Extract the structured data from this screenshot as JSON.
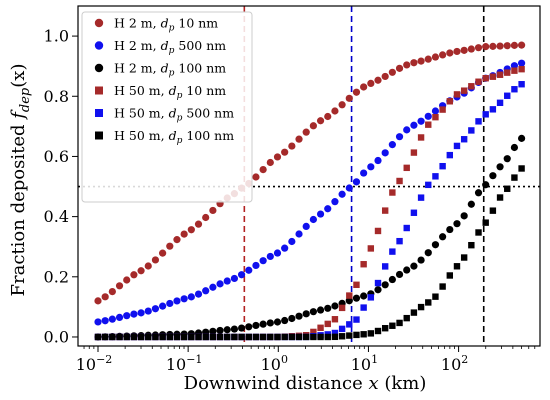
{
  "chart_data": {
    "type": "scatter",
    "xlabel": {
      "prefix": "Downwind distance ",
      "var": "x",
      "suffix": " (km)"
    },
    "ylabel": {
      "prefix": "Fraction deposited ",
      "var": "f",
      "sub": "dep",
      "suffix": "(x)"
    },
    "xscale": "log",
    "xlim": [
      0.006,
      800
    ],
    "ylim": [
      -0.03,
      1.1
    ],
    "xticks": [
      {
        "value": 0.01,
        "base": "10",
        "exp": "−2"
      },
      {
        "value": 0.1,
        "base": "10",
        "exp": "−1"
      },
      {
        "value": 1,
        "base": "10",
        "exp": "0"
      },
      {
        "value": 10,
        "base": "10",
        "exp": "1"
      },
      {
        "value": 100,
        "base": "10",
        "exp": "2"
      }
    ],
    "yticks": [
      {
        "value": 0.0,
        "label": "0.0"
      },
      {
        "value": 0.2,
        "label": "0.2"
      },
      {
        "value": 0.4,
        "label": "0.4"
      },
      {
        "value": 0.6,
        "label": "0.6"
      },
      {
        "value": 0.8,
        "label": "0.8"
      },
      {
        "value": 1.0,
        "label": "1.0"
      }
    ],
    "grid": false,
    "legend_position": "top-left",
    "reference_lines": [
      {
        "orientation": "horizontal",
        "value": 0.5,
        "color": "#000000",
        "style": "dotted"
      },
      {
        "orientation": "vertical",
        "value": 0.42,
        "color": "#b22222",
        "style": "dashed"
      },
      {
        "orientation": "vertical",
        "value": 6.5,
        "color": "#0000cc",
        "style": "dashed"
      },
      {
        "orientation": "vertical",
        "value": 190,
        "color": "#000000",
        "style": "dashed"
      }
    ],
    "series": [
      {
        "h": "H 2 m, ",
        "dp": "d",
        "dp_sub": "p",
        "size": " 10 nm",
        "marker": "circle",
        "color": "#a52a2a",
        "points": [
          [
            0.01,
            0.12
          ],
          [
            0.03,
            0.22
          ],
          [
            0.1,
            0.35
          ],
          [
            0.3,
            0.47
          ],
          [
            0.42,
            0.5
          ],
          [
            1,
            0.6
          ],
          [
            3,
            0.72
          ],
          [
            10,
            0.84
          ],
          [
            30,
            0.91
          ],
          [
            100,
            0.95
          ],
          [
            200,
            0.965
          ],
          [
            500,
            0.97
          ]
        ]
      },
      {
        "h": "H 2 m, ",
        "dp": "d",
        "dp_sub": "p",
        "size": " 500 nm",
        "marker": "circle",
        "color": "#1010ee",
        "points": [
          [
            0.01,
            0.05
          ],
          [
            0.03,
            0.08
          ],
          [
            0.1,
            0.13
          ],
          [
            0.3,
            0.19
          ],
          [
            1,
            0.28
          ],
          [
            3,
            0.41
          ],
          [
            6.5,
            0.5
          ],
          [
            10,
            0.56
          ],
          [
            30,
            0.7
          ],
          [
            100,
            0.8
          ],
          [
            200,
            0.86
          ],
          [
            500,
            0.91
          ]
        ]
      },
      {
        "h": "H 2 m, ",
        "dp": "d",
        "dp_sub": "p",
        "size": " 100 nm",
        "marker": "circle",
        "color": "#000000",
        "points": [
          [
            0.01,
            0.0
          ],
          [
            0.1,
            0.01
          ],
          [
            0.3,
            0.025
          ],
          [
            1,
            0.05
          ],
          [
            3,
            0.09
          ],
          [
            10,
            0.14
          ],
          [
            30,
            0.23
          ],
          [
            100,
            0.38
          ],
          [
            190,
            0.5
          ],
          [
            300,
            0.57
          ],
          [
            500,
            0.66
          ]
        ]
      },
      {
        "h": "H 50 m, ",
        "dp": "d",
        "dp_sub": "p",
        "size": " 10 nm",
        "marker": "square",
        "color": "#a52a2a",
        "points": [
          [
            0.01,
            0.0
          ],
          [
            1,
            0.0
          ],
          [
            2,
            0.005
          ],
          [
            4,
            0.05
          ],
          [
            7,
            0.16
          ],
          [
            10,
            0.28
          ],
          [
            20,
            0.5
          ],
          [
            50,
            0.72
          ],
          [
            100,
            0.81
          ],
          [
            200,
            0.86
          ],
          [
            500,
            0.89
          ]
        ]
      },
      {
        "h": "H 50 m, ",
        "dp": "d",
        "dp_sub": "p",
        "size": " 500 nm",
        "marker": "square",
        "color": "#1010ee",
        "points": [
          [
            0.01,
            0.0
          ],
          [
            2,
            0.0
          ],
          [
            4,
            0.01
          ],
          [
            7,
            0.05
          ],
          [
            10,
            0.12
          ],
          [
            20,
            0.3
          ],
          [
            50,
            0.52
          ],
          [
            100,
            0.64
          ],
          [
            200,
            0.74
          ],
          [
            500,
            0.84
          ]
        ]
      },
      {
        "h": "H 50 m, ",
        "dp": "d",
        "dp_sub": "p",
        "size": " 100 nm",
        "marker": "square",
        "color": "#000000",
        "points": [
          [
            0.01,
            0.0
          ],
          [
            4,
            0.0
          ],
          [
            10,
            0.01
          ],
          [
            20,
            0.04
          ],
          [
            50,
            0.12
          ],
          [
            100,
            0.24
          ],
          [
            200,
            0.38
          ],
          [
            300,
            0.47
          ],
          [
            500,
            0.56
          ]
        ]
      }
    ]
  }
}
